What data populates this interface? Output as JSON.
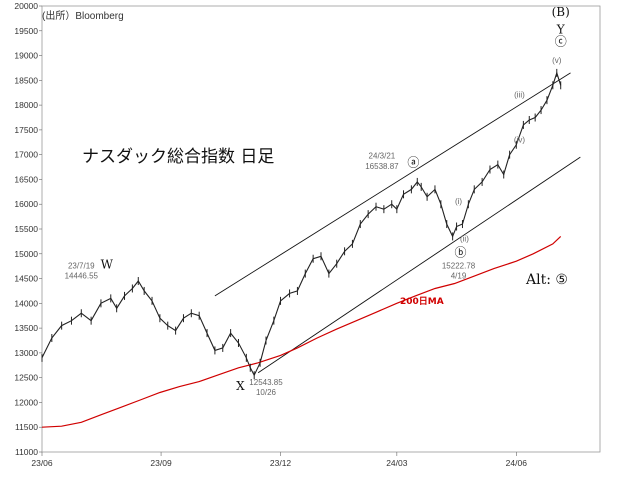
{
  "source": "(出所）Bloomberg",
  "chart_data": {
    "type": "line",
    "title": "ナスダック総合指数 日足",
    "y_ticks": [
      20000,
      19500,
      19000,
      18500,
      18000,
      17500,
      17000,
      16500,
      16000,
      15500,
      15000,
      14500,
      14000,
      13500,
      13000,
      12500,
      12000,
      11500,
      11000
    ],
    "ylim": [
      11000,
      20000
    ],
    "x_ticks": [
      {
        "label": "23/06",
        "x": 0
      },
      {
        "label": "23/09",
        "x": 3.03
      },
      {
        "label": "23/12",
        "x": 6.07
      },
      {
        "label": "24/03",
        "x": 9.03
      },
      {
        "label": "24/06",
        "x": 12.07
      }
    ],
    "xlim": [
      0,
      14.2
    ],
    "series": [
      {
        "name": "price",
        "color": "#222222",
        "points": [
          [
            0.0,
            12900
          ],
          [
            0.25,
            13300
          ],
          [
            0.5,
            13550
          ],
          [
            0.75,
            13650
          ],
          [
            1.0,
            13800
          ],
          [
            1.25,
            13650
          ],
          [
            1.5,
            14000
          ],
          [
            1.75,
            14100
          ],
          [
            1.9,
            13900
          ],
          [
            2.1,
            14150
          ],
          [
            2.3,
            14300
          ],
          [
            2.45,
            14450
          ],
          [
            2.6,
            14250
          ],
          [
            2.8,
            14050
          ],
          [
            3.0,
            13700
          ],
          [
            3.2,
            13550
          ],
          [
            3.4,
            13450
          ],
          [
            3.6,
            13700
          ],
          [
            3.8,
            13800
          ],
          [
            4.0,
            13750
          ],
          [
            4.2,
            13400
          ],
          [
            4.4,
            13050
          ],
          [
            4.6,
            13100
          ],
          [
            4.8,
            13400
          ],
          [
            5.0,
            13200
          ],
          [
            5.2,
            12900
          ],
          [
            5.3,
            12700
          ],
          [
            5.4,
            12550
          ],
          [
            5.55,
            12800
          ],
          [
            5.7,
            13250
          ],
          [
            5.9,
            13650
          ],
          [
            6.07,
            14050
          ],
          [
            6.3,
            14200
          ],
          [
            6.5,
            14250
          ],
          [
            6.7,
            14600
          ],
          [
            6.9,
            14900
          ],
          [
            7.1,
            14950
          ],
          [
            7.3,
            14600
          ],
          [
            7.5,
            14800
          ],
          [
            7.7,
            15050
          ],
          [
            7.9,
            15200
          ],
          [
            8.1,
            15600
          ],
          [
            8.3,
            15800
          ],
          [
            8.5,
            15950
          ],
          [
            8.7,
            15900
          ],
          [
            8.9,
            16000
          ],
          [
            9.03,
            15900
          ],
          [
            9.2,
            16200
          ],
          [
            9.4,
            16300
          ],
          [
            9.55,
            16450
          ],
          [
            9.65,
            16350
          ],
          [
            9.8,
            16150
          ],
          [
            10.0,
            16300
          ],
          [
            10.15,
            16000
          ],
          [
            10.3,
            15600
          ],
          [
            10.45,
            15350
          ],
          [
            10.55,
            15550
          ],
          [
            10.7,
            15600
          ],
          [
            10.85,
            16000
          ],
          [
            11.0,
            16300
          ],
          [
            11.2,
            16450
          ],
          [
            11.4,
            16700
          ],
          [
            11.6,
            16800
          ],
          [
            11.75,
            16600
          ],
          [
            11.9,
            17000
          ],
          [
            12.07,
            17200
          ],
          [
            12.25,
            17600
          ],
          [
            12.4,
            17700
          ],
          [
            12.55,
            17750
          ],
          [
            12.7,
            17900
          ],
          [
            12.85,
            18100
          ],
          [
            13.0,
            18400
          ],
          [
            13.1,
            18650
          ],
          [
            13.2,
            18400
          ]
        ]
      },
      {
        "name": "200日MA",
        "color": "#d00000",
        "points": [
          [
            0.0,
            11500
          ],
          [
            0.5,
            11520
          ],
          [
            1.0,
            11600
          ],
          [
            1.5,
            11750
          ],
          [
            2.0,
            11900
          ],
          [
            2.5,
            12050
          ],
          [
            3.0,
            12200
          ],
          [
            3.5,
            12320
          ],
          [
            4.0,
            12420
          ],
          [
            4.5,
            12560
          ],
          [
            5.0,
            12700
          ],
          [
            5.5,
            12800
          ],
          [
            6.07,
            12950
          ],
          [
            6.5,
            13100
          ],
          [
            7.0,
            13300
          ],
          [
            7.5,
            13480
          ],
          [
            8.0,
            13650
          ],
          [
            8.5,
            13820
          ],
          [
            9.03,
            14000
          ],
          [
            9.5,
            14150
          ],
          [
            10.0,
            14300
          ],
          [
            10.5,
            14400
          ],
          [
            11.0,
            14550
          ],
          [
            11.5,
            14700
          ],
          [
            12.07,
            14850
          ],
          [
            12.5,
            15000
          ],
          [
            13.0,
            15200
          ],
          [
            13.2,
            15350
          ]
        ]
      }
    ],
    "channel_lines": [
      {
        "name": "upper",
        "points": [
          [
            4.4,
            14150
          ],
          [
            13.45,
            18650
          ]
        ]
      },
      {
        "name": "lower",
        "points": [
          [
            5.5,
            12600
          ],
          [
            13.7,
            16950
          ]
        ]
      }
    ],
    "annotations": [
      {
        "text": "23/7/19",
        "x": 1.0,
        "y": 14700,
        "kind": "ann"
      },
      {
        "text": "14446.55",
        "x": 1.0,
        "y": 14500,
        "kind": "ann"
      },
      {
        "text": "W",
        "x": 1.65,
        "y": 14700,
        "kind": "wave"
      },
      {
        "text": "X",
        "x": 5.05,
        "y": 12250,
        "kind": "wave"
      },
      {
        "text": "12543.85",
        "x": 5.7,
        "y": 12350,
        "kind": "ann"
      },
      {
        "text": "10/26",
        "x": 5.7,
        "y": 12150,
        "kind": "ann"
      },
      {
        "text": "24/3/21",
        "x": 8.65,
        "y": 16920,
        "kind": "ann"
      },
      {
        "text": "16538.87",
        "x": 8.65,
        "y": 16710,
        "kind": "ann"
      },
      {
        "text": "ⓐ",
        "x": 9.45,
        "y": 16760,
        "kind": "wave"
      },
      {
        "text": "ⓑ",
        "x": 10.65,
        "y": 14950,
        "kind": "wave"
      },
      {
        "text": "15222.78",
        "x": 10.6,
        "y": 14700,
        "kind": "ann"
      },
      {
        "text": "4/19",
        "x": 10.6,
        "y": 14500,
        "kind": "ann"
      },
      {
        "text": "(i)",
        "x": 10.6,
        "y": 16000,
        "kind": "ann"
      },
      {
        "text": "(ii)",
        "x": 10.75,
        "y": 15250,
        "kind": "ann"
      },
      {
        "text": "(iii)",
        "x": 12.15,
        "y": 18150,
        "kind": "ann"
      },
      {
        "text": "(iv)",
        "x": 12.15,
        "y": 17250,
        "kind": "ann"
      },
      {
        "text": "(v)",
        "x": 13.1,
        "y": 18850,
        "kind": "ann"
      },
      {
        "text": "ⓒ",
        "x": 13.2,
        "y": 19200,
        "kind": "wave"
      },
      {
        "text": "Y",
        "x": 13.2,
        "y": 19450,
        "kind": "wave"
      },
      {
        "text": "(B)",
        "x": 13.2,
        "y": 19800,
        "kind": "wave"
      }
    ],
    "ma_label": "200日MA",
    "alt_label": "Alt: ⑤"
  }
}
